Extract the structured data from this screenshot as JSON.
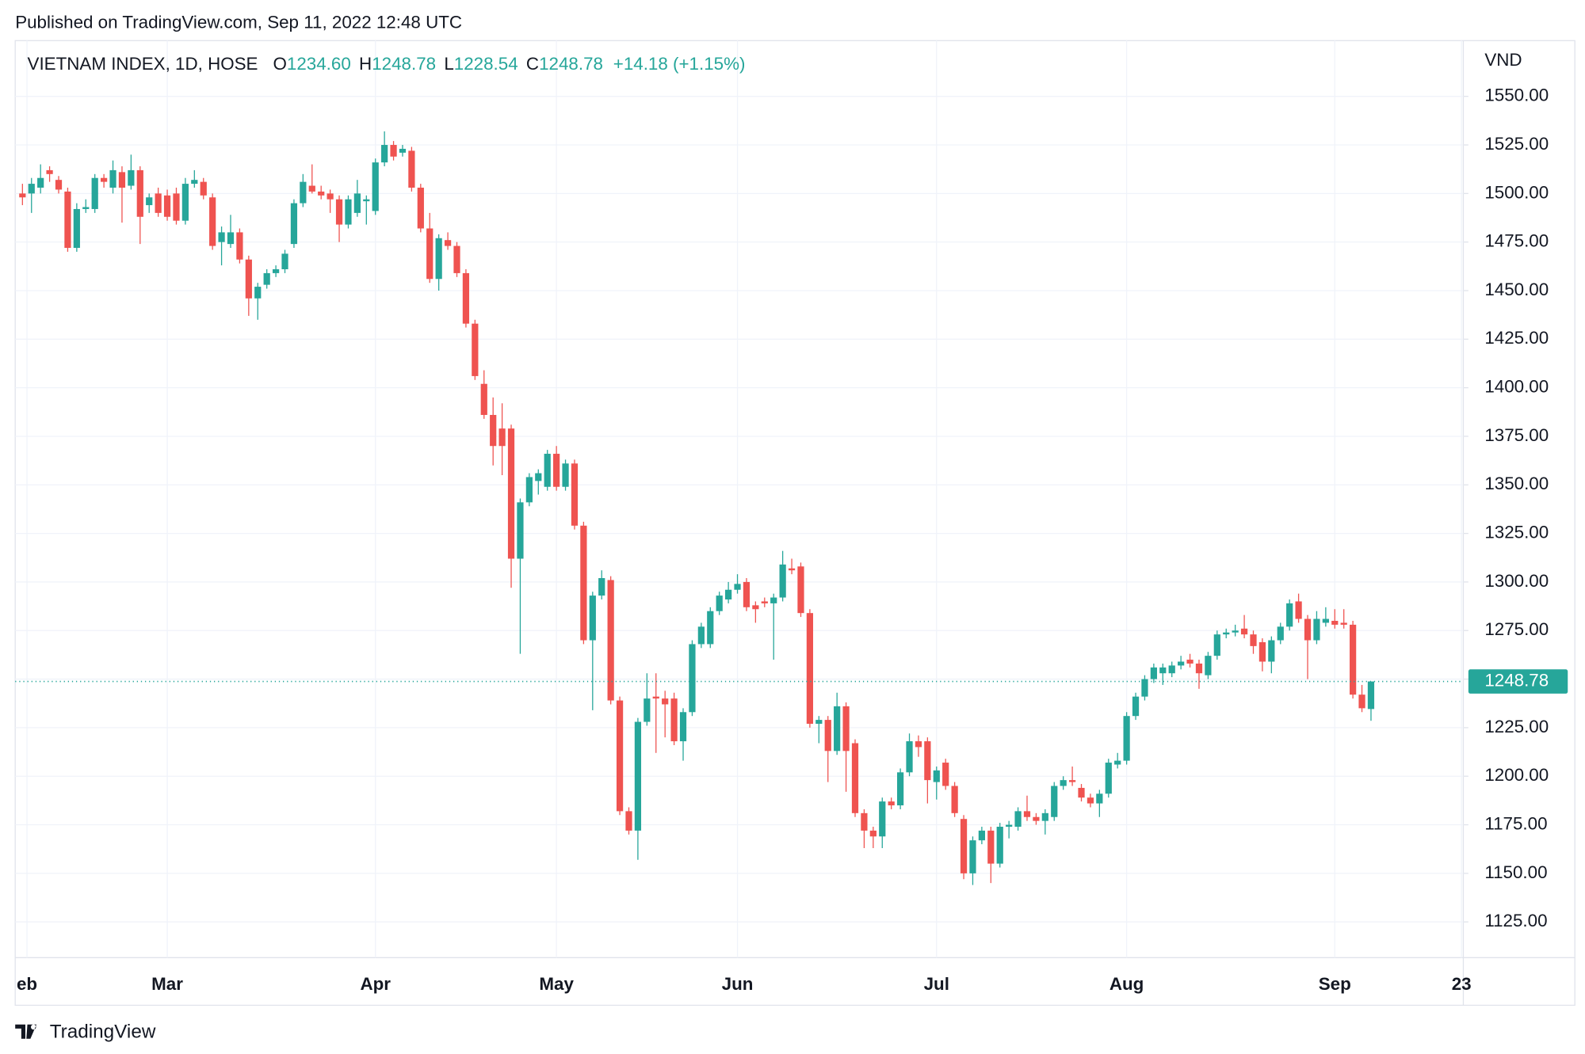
{
  "chart_data": {
    "type": "candlestick",
    "attribution": "Published on TradingView.com, Sep 11, 2022 12:48 UTC",
    "symbol": "VIETNAM INDEX, 1D, HOSE",
    "ohlc_legend": [
      {
        "key": "O",
        "value": "1234.60"
      },
      {
        "key": "H",
        "value": "1248.78"
      },
      {
        "key": "L",
        "value": "1228.54"
      },
      {
        "key": "C",
        "value": "1248.78"
      }
    ],
    "change": "+14.18 (+1.15%)",
    "y_unit": "VND",
    "brand": "TradingView",
    "up_color": "#26a69a",
    "down_color": "#ef5350",
    "grid": true,
    "xlim": [
      -0.8,
      159.2
    ],
    "xticks": [
      {
        "value": 0.5,
        "label": "eb"
      },
      {
        "value": 16,
        "label": "Mar"
      },
      {
        "value": 39,
        "label": "Apr"
      },
      {
        "value": 59,
        "label": "May"
      },
      {
        "value": 79,
        "label": "Jun"
      },
      {
        "value": 101,
        "label": "Jul"
      },
      {
        "value": 122,
        "label": "Aug"
      },
      {
        "value": 145,
        "label": "Sep"
      },
      {
        "value": 159,
        "label": "23"
      }
    ],
    "ylim": [
      1106.6,
      1578.7
    ],
    "yticks": [
      {
        "value": 1550,
        "label": "1550.00"
      },
      {
        "value": 1525,
        "label": "1525.00"
      },
      {
        "value": 1500,
        "label": "1500.00"
      },
      {
        "value": 1475,
        "label": "1475.00"
      },
      {
        "value": 1450,
        "label": "1450.00"
      },
      {
        "value": 1425,
        "label": "1425.00"
      },
      {
        "value": 1400,
        "label": "1400.00"
      },
      {
        "value": 1375,
        "label": "1375.00"
      },
      {
        "value": 1350,
        "label": "1350.00"
      },
      {
        "value": 1325,
        "label": "1325.00"
      },
      {
        "value": 1300,
        "label": "1300.00"
      },
      {
        "value": 1275,
        "label": "1275.00"
      },
      {
        "value": 1250,
        "label": "1250.00"
      },
      {
        "value": 1225,
        "label": "1225.00"
      },
      {
        "value": 1200,
        "label": "1200.00"
      },
      {
        "value": 1175,
        "label": "1175.00"
      },
      {
        "value": 1150,
        "label": "1150.00"
      },
      {
        "value": 1125,
        "label": "1125.00"
      }
    ],
    "open": [
      1500,
      1500,
      1503,
      1512,
      1507,
      1501,
      1472,
      1492,
      1492,
      1508,
      1503,
      1511,
      1504,
      1512,
      1494,
      1500,
      1499,
      1500,
      1486,
      1505,
      1506,
      1498,
      1475,
      1474,
      1480,
      1466,
      1446,
      1453,
      1459,
      1461,
      1474,
      1495,
      1504,
      1501,
      1500,
      1497,
      1484,
      1490,
      1496,
      1491,
      1516,
      1525,
      1521,
      1522,
      1503,
      1482,
      1456,
      1476,
      1473,
      1459,
      1433,
      1402,
      1386,
      1379,
      1379,
      1312,
      1341,
      1352,
      1349,
      1366,
      1349,
      1361,
      1329,
      1270,
      1293,
      1301,
      1239,
      1182,
      1172,
      1228,
      1241,
      1240,
      1240,
      1218,
      1233,
      1268,
      1268,
      1285,
      1291,
      1296,
      1300,
      1288,
      1290,
      1289,
      1292,
      1307,
      1308,
      1284,
      1227,
      1229,
      1213,
      1236,
      1217,
      1181,
      1172,
      1169,
      1187,
      1185,
      1202,
      1218,
      1218,
      1197,
      1207,
      1195,
      1178,
      1150,
      1167,
      1172,
      1155,
      1174,
      1174,
      1182,
      1179,
      1177,
      1179,
      1195,
      1198,
      1194,
      1189,
      1186,
      1191,
      1206,
      1208,
      1231,
      1241,
      1250,
      1253,
      1253,
      1257,
      1260,
      1258,
      1252,
      1262,
      1273,
      1274,
      1276,
      1273,
      1269,
      1259,
      1270,
      1277,
      1290,
      1281,
      1270,
      1279,
      1280,
      1279,
      1278,
      1242,
      1234.6
    ],
    "high": [
      1505,
      1508,
      1515,
      1514,
      1509,
      1503,
      1495,
      1497,
      1510,
      1510,
      1517,
      1514,
      1520,
      1514,
      1500,
      1503,
      1502,
      1503,
      1508,
      1512,
      1508,
      1500,
      1483,
      1489,
      1482,
      1468,
      1454,
      1461,
      1463,
      1471,
      1497,
      1510,
      1515,
      1504,
      1502,
      1499,
      1499,
      1507,
      1499,
      1518,
      1532,
      1527,
      1525,
      1524,
      1505,
      1490,
      1479,
      1480,
      1475,
      1461,
      1435,
      1409,
      1395,
      1392,
      1381,
      1343,
      1356,
      1358,
      1368,
      1370,
      1363,
      1363,
      1331,
      1295,
      1306,
      1303,
      1241,
      1184,
      1230,
      1253,
      1253,
      1244,
      1243,
      1235,
      1270,
      1279,
      1287,
      1295,
      1300,
      1304,
      1302,
      1290,
      1292,
      1294,
      1316,
      1312,
      1310,
      1286,
      1231,
      1231,
      1243,
      1238,
      1219,
      1183,
      1174,
      1189,
      1189,
      1204,
      1222,
      1221,
      1220,
      1205,
      1209,
      1197,
      1180,
      1169,
      1174,
      1174,
      1176,
      1177,
      1184,
      1190,
      1181,
      1183,
      1197,
      1200,
      1205,
      1196,
      1191,
      1193,
      1209,
      1212,
      1233,
      1243,
      1252,
      1258,
      1258,
      1259,
      1262,
      1263,
      1260,
      1264,
      1275,
      1276,
      1278,
      1283,
      1275,
      1271,
      1272,
      1279,
      1291,
      1294,
      1283,
      1285,
      1287,
      1286,
      1286,
      1280,
      1247,
      1248.78
    ],
    "low": [
      1494,
      1490,
      1500,
      1506,
      1500,
      1470,
      1470,
      1490,
      1490,
      1503,
      1500,
      1485,
      1502,
      1474,
      1490,
      1488,
      1486,
      1484,
      1484,
      1503,
      1497,
      1471,
      1463,
      1472,
      1464,
      1437,
      1435,
      1451,
      1457,
      1459,
      1472,
      1493,
      1500,
      1497,
      1490,
      1475,
      1482,
      1488,
      1484,
      1489,
      1514,
      1517,
      1519,
      1501,
      1480,
      1454,
      1450,
      1471,
      1457,
      1431,
      1404,
      1384,
      1360,
      1355,
      1297,
      1263,
      1339,
      1345,
      1347,
      1347,
      1347,
      1327,
      1268,
      1234,
      1291,
      1237,
      1180,
      1170,
      1157,
      1226,
      1212,
      1220,
      1216,
      1208,
      1231,
      1266,
      1266,
      1283,
      1289,
      1294,
      1285,
      1279,
      1287,
      1260,
      1290,
      1304,
      1282,
      1225,
      1217,
      1197,
      1211,
      1192,
      1179,
      1163,
      1163,
      1163,
      1183,
      1183,
      1200,
      1210,
      1186,
      1188,
      1193,
      1179,
      1147,
      1144,
      1165,
      1145,
      1153,
      1168,
      1172,
      1177,
      1175,
      1170,
      1177,
      1193,
      1195,
      1187,
      1184,
      1179,
      1189,
      1204,
      1206,
      1229,
      1239,
      1248,
      1247,
      1251,
      1255,
      1256,
      1245,
      1250,
      1260,
      1271,
      1272,
      1271,
      1263,
      1254,
      1253,
      1268,
      1275,
      1279,
      1250,
      1268,
      1277,
      1276,
      1276,
      1240,
      1233,
      1228.54
    ],
    "close": [
      1498,
      1505,
      1508,
      1510,
      1502,
      1472,
      1492,
      1493,
      1508,
      1506,
      1512,
      1503,
      1512,
      1488,
      1498,
      1490,
      1488,
      1486,
      1505,
      1507,
      1499,
      1473,
      1480,
      1480,
      1466,
      1446,
      1452,
      1459,
      1461,
      1469,
      1495,
      1506,
      1501,
      1499,
      1497,
      1484,
      1497,
      1500,
      1497,
      1516,
      1525,
      1519,
      1523,
      1503,
      1482,
      1456,
      1477,
      1473,
      1459,
      1433,
      1406,
      1386,
      1370,
      1370,
      1312,
      1341,
      1354,
      1356,
      1366,
      1349,
      1361,
      1329,
      1270,
      1293,
      1302,
      1239,
      1182,
      1172,
      1228,
      1240,
      1240,
      1237,
      1218,
      1233,
      1268,
      1277,
      1285,
      1293,
      1296,
      1299,
      1287,
      1286,
      1289,
      1292,
      1309,
      1306,
      1284,
      1227,
      1229,
      1213,
      1236,
      1213,
      1181,
      1172,
      1169,
      1187,
      1185,
      1202,
      1218,
      1215,
      1198,
      1203,
      1195,
      1181,
      1150,
      1167,
      1172,
      1155,
      1174,
      1175,
      1182,
      1179,
      1177,
      1181,
      1195,
      1198,
      1197,
      1189,
      1186,
      1191,
      1207,
      1208,
      1231,
      1241,
      1250,
      1256,
      1256,
      1257,
      1259,
      1258,
      1253,
      1262,
      1273,
      1274,
      1275,
      1273,
      1267,
      1259,
      1270,
      1277,
      1289,
      1281,
      1270,
      1281,
      1281,
      1278,
      1278,
      1242,
      1235,
      1248.78
    ]
  }
}
